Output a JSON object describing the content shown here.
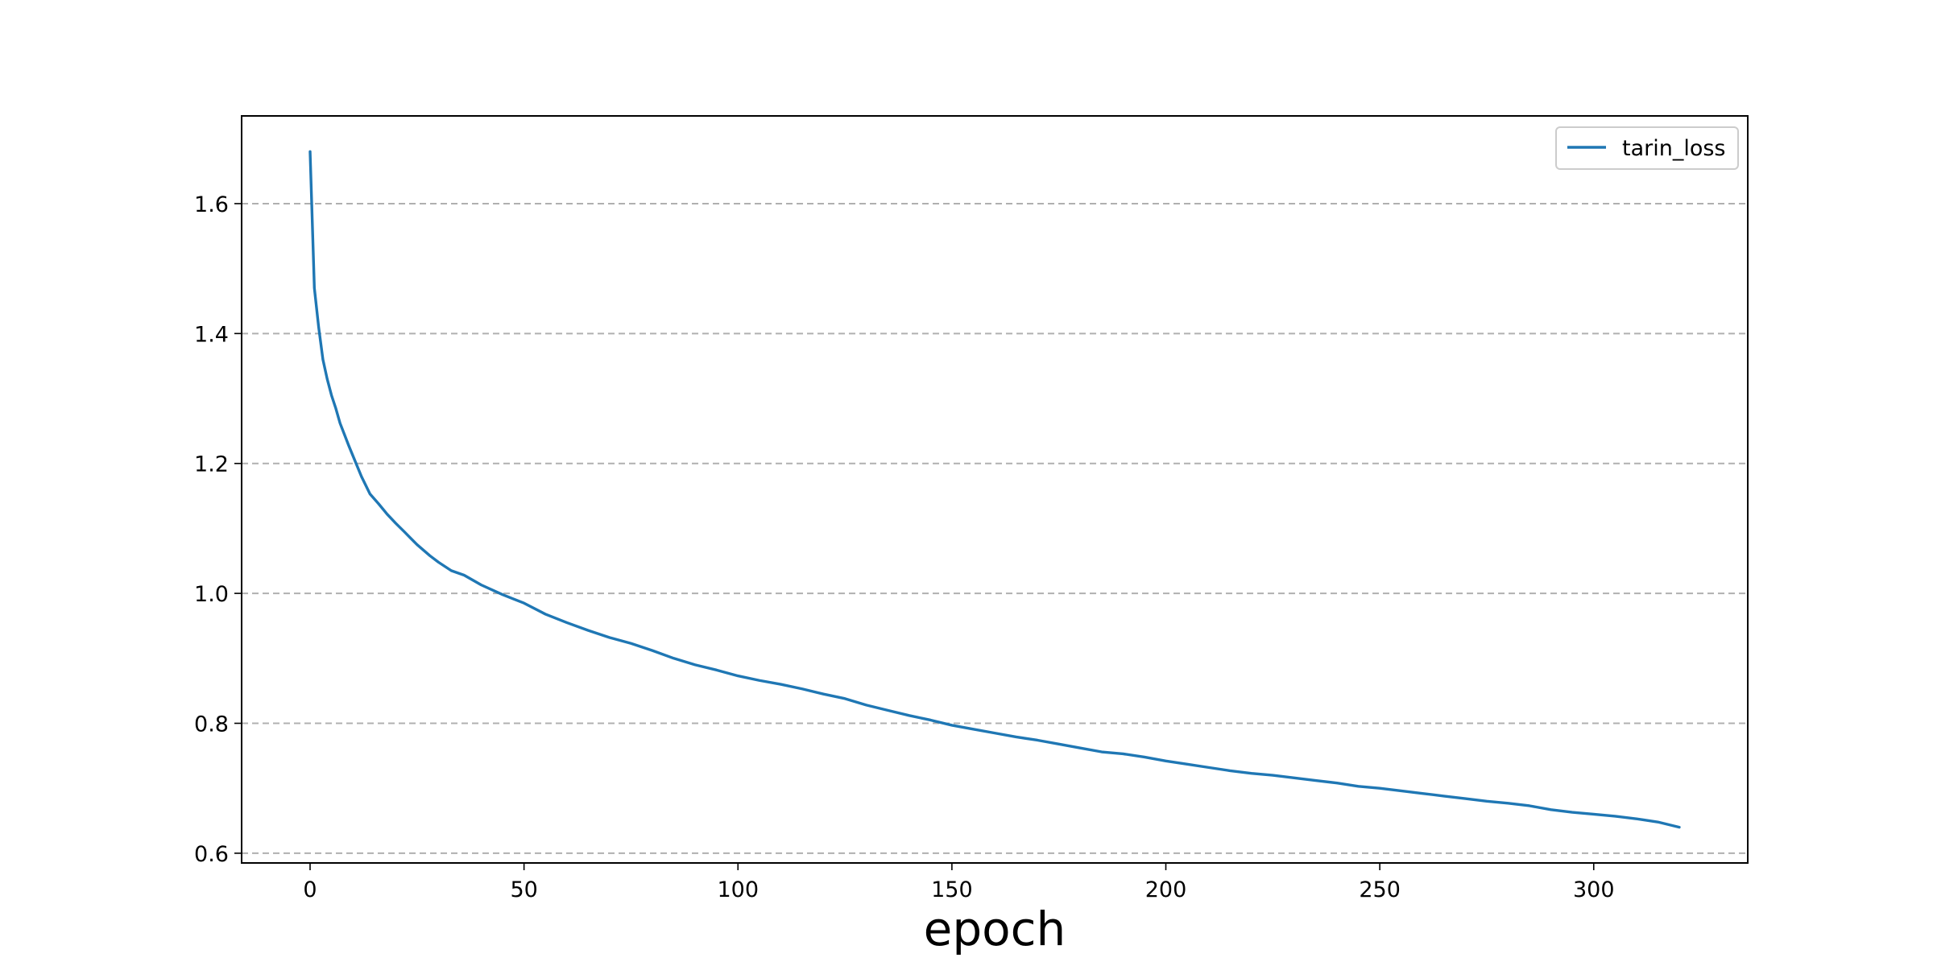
{
  "chart_data": {
    "type": "line",
    "title": "",
    "xlabel": "epoch",
    "ylabel": "",
    "xlim": [
      -16,
      336
    ],
    "ylim": [
      0.585,
      1.735
    ],
    "x_ticks": [
      0,
      50,
      100,
      150,
      200,
      250,
      300
    ],
    "y_ticks": [
      0.6,
      0.8,
      1.0,
      1.2,
      1.4,
      1.6
    ],
    "y_tick_labels": [
      "0.6",
      "0.8",
      "1.0",
      "1.2",
      "1.4",
      "1.6"
    ],
    "grid": {
      "axis": "y",
      "style": "dashed"
    },
    "legend": {
      "position": "top-right"
    },
    "series": [
      {
        "name": "tarin_loss",
        "color": "#1f77b4",
        "x": [
          0,
          1,
          2,
          3,
          4,
          5,
          6,
          7,
          8,
          9,
          10,
          12,
          14,
          16,
          18,
          20,
          22,
          25,
          28,
          30,
          33,
          36,
          40,
          45,
          50,
          55,
          60,
          65,
          70,
          75,
          80,
          85,
          90,
          95,
          100,
          105,
          110,
          115,
          120,
          125,
          130,
          135,
          140,
          145,
          150,
          155,
          160,
          165,
          170,
          175,
          180,
          185,
          190,
          195,
          200,
          205,
          210,
          215,
          220,
          225,
          230,
          235,
          240,
          245,
          250,
          255,
          260,
          265,
          270,
          275,
          280,
          285,
          290,
          295,
          300,
          305,
          310,
          315,
          320
        ],
        "y": [
          1.68,
          1.47,
          1.41,
          1.36,
          1.33,
          1.305,
          1.285,
          1.262,
          1.245,
          1.228,
          1.212,
          1.18,
          1.153,
          1.138,
          1.122,
          1.108,
          1.095,
          1.075,
          1.058,
          1.048,
          1.035,
          1.028,
          1.013,
          0.998,
          0.985,
          0.968,
          0.955,
          0.943,
          0.932,
          0.923,
          0.912,
          0.9,
          0.89,
          0.882,
          0.873,
          0.866,
          0.86,
          0.853,
          0.845,
          0.838,
          0.828,
          0.82,
          0.812,
          0.805,
          0.797,
          0.791,
          0.785,
          0.779,
          0.774,
          0.768,
          0.762,
          0.756,
          0.753,
          0.748,
          0.742,
          0.737,
          0.732,
          0.727,
          0.723,
          0.72,
          0.716,
          0.712,
          0.708,
          0.703,
          0.7,
          0.696,
          0.692,
          0.688,
          0.684,
          0.68,
          0.677,
          0.673,
          0.667,
          0.663,
          0.66,
          0.657,
          0.653,
          0.648,
          0.64
        ]
      }
    ]
  }
}
